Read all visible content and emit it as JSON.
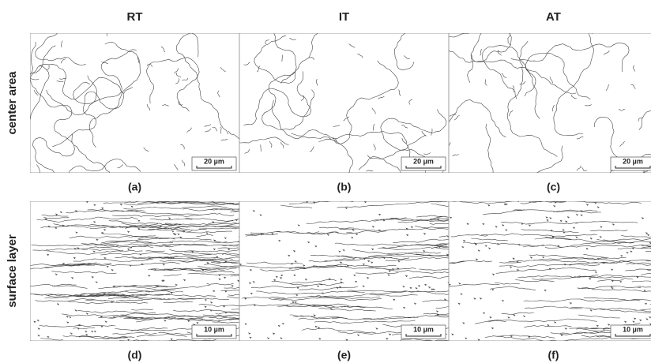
{
  "columns": [
    "RT",
    "IT",
    "AT"
  ],
  "rows": [
    {
      "label": "center area",
      "scale_bar": "20 µm",
      "captions": [
        "(a)",
        "(b)",
        "(c)"
      ]
    },
    {
      "label": "surface layer",
      "scale_bar": "10 µm",
      "captions": [
        "(d)",
        "(e)",
        "(f)"
      ]
    }
  ]
}
